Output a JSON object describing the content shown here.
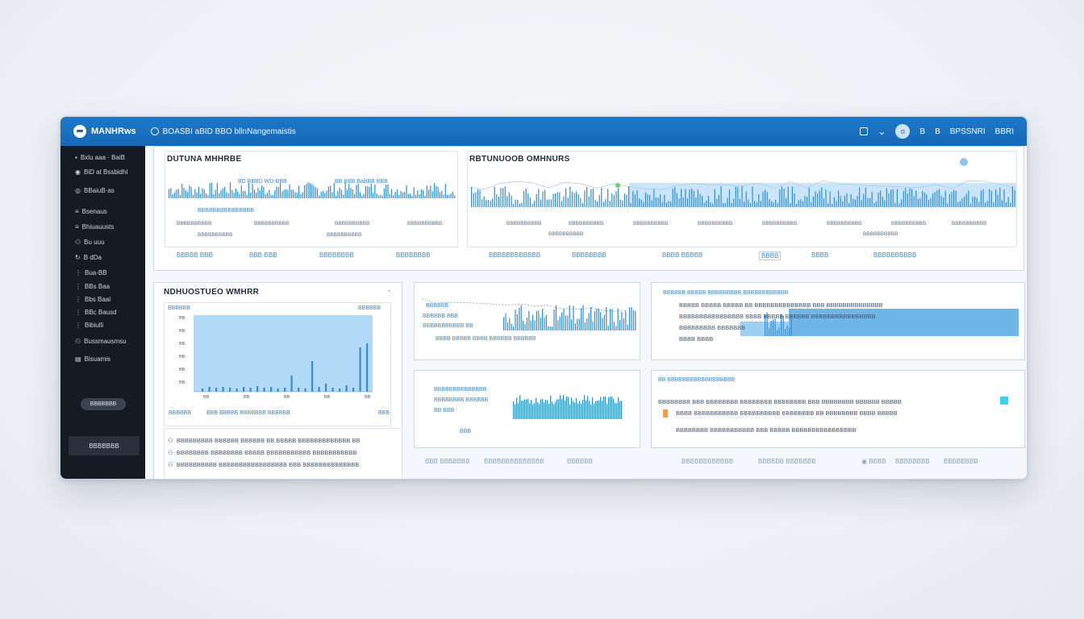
{
  "app": {
    "name": "MANHRws",
    "breadcrumb": "BOASBI aBID BBO bllnNangemaistis"
  },
  "topbar": {
    "icons": [
      "chat-icon",
      "chevron-down-icon",
      "user-avatar"
    ],
    "avatar_letter": "ο",
    "right_items": [
      "B",
      "B",
      "BPSSNRI",
      "BBRI"
    ]
  },
  "sidebar": {
    "items": [
      {
        "icon": "grid-icon",
        "label": "Bxlu aaa · BaiB"
      },
      {
        "icon": "circle-icon",
        "label": "BiD at Bssbidhl"
      },
      {
        "icon": "gauge-icon",
        "label": "BBaiuB·as"
      },
      {
        "icon": "list-icon",
        "label": "Bsenaus"
      },
      {
        "icon": "list-icon",
        "label": "Bhiuauusts"
      },
      {
        "icon": "user-icon",
        "label": "Bu uuu"
      },
      {
        "icon": "refresh-icon",
        "label": "B dDa"
      },
      {
        "icon": "list-icon",
        "label": "Bua·BB"
      },
      {
        "icon": "list-icon",
        "label": "BBs Baa"
      },
      {
        "icon": "list-icon",
        "label": "Bbs Baal"
      },
      {
        "icon": "list-icon",
        "label": "BBc Bausd"
      },
      {
        "icon": "list-icon",
        "label": "Bibiulli"
      },
      {
        "icon": "users-icon",
        "label": "Bussmausmsu"
      },
      {
        "icon": "chart-icon",
        "label": "Bisuamis"
      }
    ],
    "pill": "BBBBBBB",
    "button": "BBBBBBB"
  },
  "top_left_panel": {
    "title": "DUTUNA MHHRBE",
    "labels": [
      "BD BBBD WD-BBB",
      "BB BBB BaBBB BBB",
      "BBBBBBBBBBBBBBB"
    ],
    "axis": [
      "BBBBBBBBBB",
      "BBBBBBBBBB",
      "BBBBBBBBBB",
      "BBBBBBBBBB",
      "BBBBBBBBBB",
      "BBBBBBBBBB"
    ]
  },
  "top_right_panel": {
    "title": "RBTUNUOOB OMHNURS",
    "axis": [
      "BBBBBBBBBB",
      "BBBBBBBBBB",
      "BBBBBBBBBB",
      "BBBBBBBBBB",
      "BBBBBBBBBB",
      "BBBBBBBBBB",
      "BBBBBBBBBB",
      "BBBBBBBBBB",
      "BBBBBBBBBB",
      "BBBBBBBBBB"
    ]
  },
  "top_links": [
    "BBBBB BBB",
    "BBB·BBB",
    "BBBBBBBB",
    "BBBBBBBB",
    "BBBBBBBBBBBB",
    "BBBBBBBB",
    "BBBB BBBBB",
    "BBBB",
    "BBBB",
    "BBBBBBBBBB"
  ],
  "mid_left_panel": {
    "title": "NDHUOSTUEO WMHRR",
    "chart_label_left": "BBBBBB",
    "chart_label_right": "BBBBBB",
    "y_ticks": [
      "BB",
      "BB",
      "BB",
      "BB",
      "BB",
      "BB"
    ],
    "x_ticks": [
      "BB",
      "BB",
      "BB",
      "BB",
      "BB"
    ],
    "footer": [
      "BBBBBB",
      "BBB BBBBB BBBBBBB BBBBBB"
    ],
    "footer_right": "BBB"
  },
  "mid_left_list": [
    "BBBBBBBBB BBBBBB BBBBBB BB BBBBB BBBBBBBBBBBBB BB",
    "BBBBBBBB BBBBBBBB BBBBB BBBBBBBBBBB BBBBBBBBBBB",
    "BBBBBBBBBB BBBBBBBBBBBBBBBBB BBB BBBBBBBBBBBBBB"
  ],
  "card_a": {
    "rows": [
      "BBBBBB",
      "BBBBBB BBB",
      "BBBBBBBBBBB BB"
    ],
    "footer": "BBBB BBBBB BBBB BBBBBB BBBBBB"
  },
  "card_b": {
    "header": "BBBBBB BBBBB BBBBBBBBB BBBBBBBBBBBB",
    "rows": [
      "BBBBB BBBBB BBBBB BB BBBBBBBBBBBBBB BBB BBBBBBBBBBBBBB",
      "BBBBBBBBBBBBBBBB BBBB BBBBB BBBBBB BBBBBBBBBBBBBBBB",
      "BBBBBBBBB BBBBBBB",
      "BBBB BBBB"
    ]
  },
  "card_c": {
    "rows": [
      "BBBBBBBBBBBBBB",
      "BBBBBBBB BBBBBB",
      "BB BBB"
    ],
    "footer": "BBB"
  },
  "card_d": {
    "header": "BB BBBBBBBBBBBBBBBBBB",
    "rows": [
      "BBBBBBBB BBB BBBBBBBB BBBBBBBB BBBBBBBB BBB BBBBBBBB BBBBBB BBBBB",
      "BBBB BBBBBBBBBBB BBBBBBBBBB BBBBBBBB BB BBBBBBBB BBBB BBBBB",
      "BBBBBBBB BBBBBBBBBBB BBB BBBBB BBBBBBBBBBBBBBBB"
    ]
  },
  "bottom_links": [
    "BBB BBBBBBB",
    "BBBBBBBBBBBBBB",
    "BBBBBB",
    "BBBBBBBBBBBB",
    "BBBBBB BBBBBBB",
    "BBBB",
    "BBBBBBBB",
    "BBBBBBBB"
  ],
  "colors": {
    "topbar": "#1569b6",
    "sidebar": "#151b24",
    "bar": "#2f8fd2",
    "area": "#9fd0f4"
  }
}
